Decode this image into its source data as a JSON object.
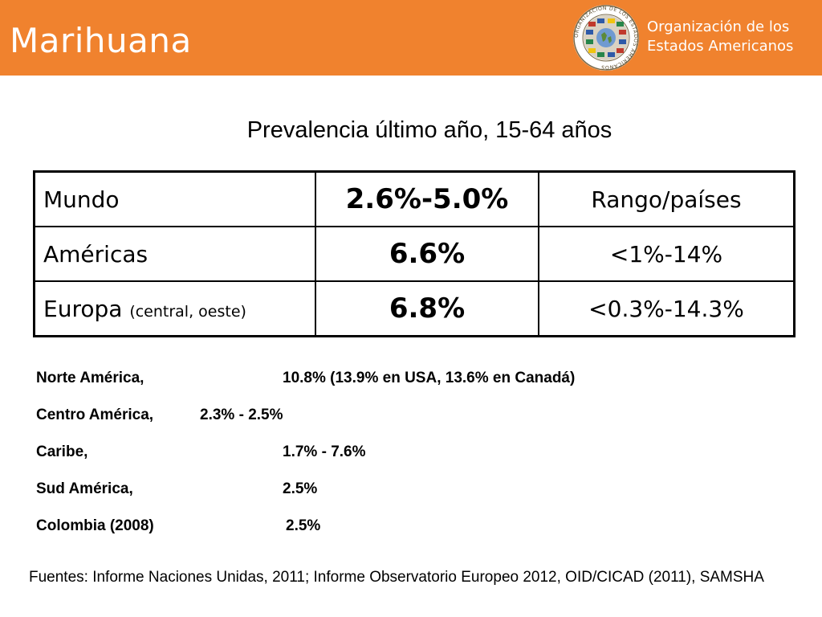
{
  "header": {
    "title": "Marihuana",
    "org_name_line1": "Organización de los",
    "org_name_line2": "Estados Americanos",
    "logo_icon": "oas-seal-icon",
    "logo_ring_text": "ORGANIZACION DE LOS ESTADOS AMERICANOS",
    "accent_color": "#f0822e"
  },
  "subtitle": "Prevalencia último año, 15-64 años",
  "table": {
    "rows": [
      {
        "region": "Mundo",
        "note": "",
        "prevalence": "2.6%-5.0%",
        "range": "Rango/países"
      },
      {
        "region": "Américas",
        "note": "",
        "prevalence": "6.6%",
        "range": "<1%-14%"
      },
      {
        "region": "Europa",
        "note": "(central, oeste)",
        "prevalence": "6.8%",
        "range": "<0.3%-14.3%"
      }
    ]
  },
  "regions": [
    {
      "name": "Norte América,",
      "value": "10.8% (13.9% en USA, 13.6% en Canadá)"
    },
    {
      "name": "Centro América,",
      "value": "2.3% - 2.5%"
    },
    {
      "name": "Caribe,",
      "value": "1.7% - 7.6%"
    },
    {
      "name": "Sud América,",
      "value": "2.5%"
    },
    {
      "name": "Colombia (2008)",
      "value": "2.5%"
    }
  ],
  "sources": "Fuentes: Informe Naciones Unidas, 2011; Informe Observatorio Europeo 2012, OID/CICAD (2011), SAMSHA"
}
